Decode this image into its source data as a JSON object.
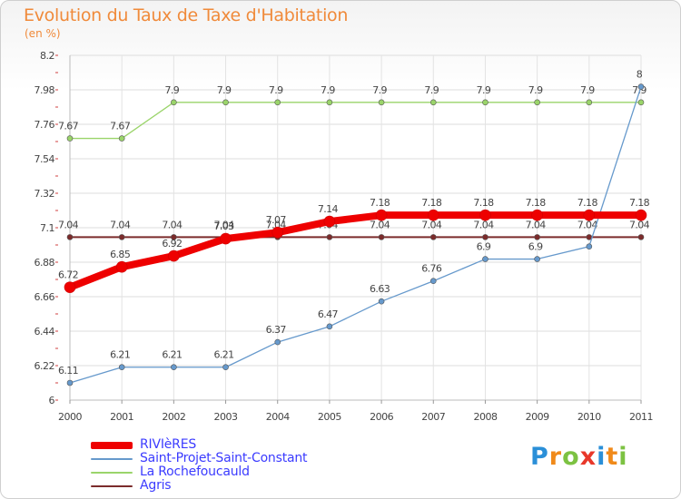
{
  "chart_data": {
    "type": "line",
    "title": "Evolution du Taux de Taxe d'Habitation",
    "subtitle": "(en %)",
    "x": [
      "2000",
      "2001",
      "2002",
      "2003",
      "2004",
      "2005",
      "2006",
      "2007",
      "2008",
      "2009",
      "2010",
      "2011"
    ],
    "ylim": [
      6,
      8.2
    ],
    "yticks": [
      "6",
      "6.22",
      "6.44",
      "6.66",
      "6.88",
      "7.1",
      "7.32",
      "7.54",
      "7.76",
      "7.98",
      "8.2"
    ],
    "grid": true,
    "legend_position": "bottom-left",
    "series": [
      {
        "name": "Agris",
        "color": "#7b2b2b",
        "width": 2,
        "values": [
          7.04,
          7.04,
          7.04,
          7.04,
          7.04,
          7.04,
          7.04,
          7.04,
          7.04,
          7.04,
          7.04,
          7.04
        ],
        "labels": [
          "7.04",
          "7.04",
          "7.04",
          "7.04",
          "7.04",
          "7.04",
          "7.04",
          "7.04",
          "7.04",
          "7.04",
          "7.04",
          "7.04"
        ]
      },
      {
        "name": "La Rochefoucauld",
        "color": "#9ad46a",
        "width": 1.3,
        "values": [
          7.67,
          7.67,
          7.9,
          7.9,
          7.9,
          7.9,
          7.9,
          7.9,
          7.9,
          7.9,
          7.9,
          7.9
        ],
        "labels": [
          "7.67",
          "7.67",
          "7.9",
          "7.9",
          "7.9",
          "7.9",
          "7.9",
          "7.9",
          "7.9",
          "7.9",
          "7.9",
          "7.9"
        ]
      },
      {
        "name": "Saint-Projet-Saint-Constant",
        "color": "#6699cc",
        "width": 1.3,
        "values": [
          6.11,
          6.21,
          6.21,
          6.21,
          6.37,
          6.47,
          6.63,
          6.76,
          6.9,
          6.9,
          6.98,
          8
        ],
        "labels": [
          "6.11",
          "6.21",
          "6.21",
          "6.21",
          "6.37",
          "6.47",
          "6.63",
          "6.76",
          "6.9",
          "6.9",
          "",
          "8"
        ]
      },
      {
        "name": "RIVIèRES",
        "color": "#ee0000",
        "width": 8,
        "values": [
          6.72,
          6.85,
          6.92,
          7.03,
          7.07,
          7.14,
          7.18,
          7.18,
          7.18,
          7.18,
          7.18,
          7.18
        ],
        "labels": [
          "6.72",
          "6.85",
          "6.92",
          "7.03",
          "7.07",
          "7.14",
          "7.18",
          "7.18",
          "7.18",
          "7.18",
          "7.18",
          "7.18"
        ]
      }
    ]
  },
  "legend": [
    {
      "label": "RIVIèRES",
      "color": "#ee0000",
      "thickness": 8
    },
    {
      "label": "Saint-Projet-Saint-Constant",
      "color": "#6699cc",
      "thickness": 2
    },
    {
      "label": "La Rochefoucauld",
      "color": "#9ad46a",
      "thickness": 2
    },
    {
      "label": "Agris",
      "color": "#7b2b2b",
      "thickness": 2
    }
  ],
  "logo": {
    "letters": [
      "P",
      "r",
      "o",
      "x",
      "i",
      "t",
      "i"
    ]
  }
}
